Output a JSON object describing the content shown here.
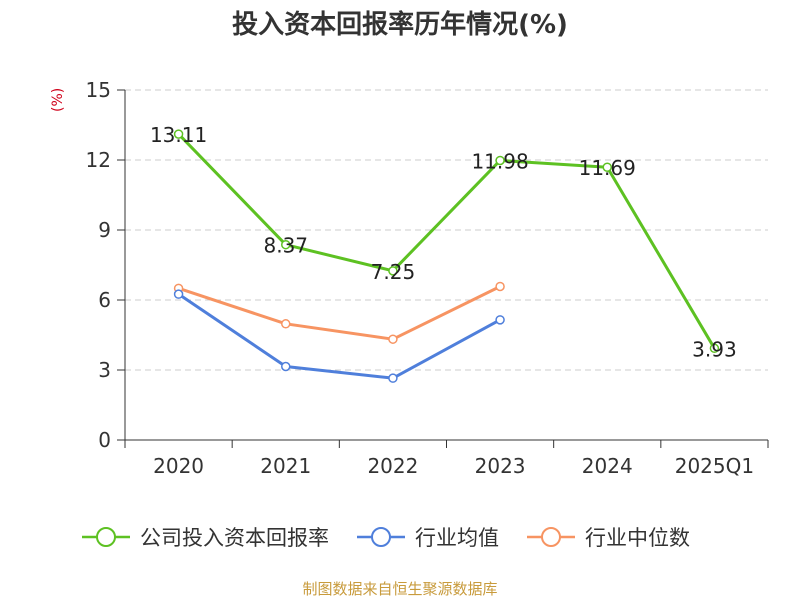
{
  "title": "投入资本回报率历年情况(%)",
  "unit": "(%)",
  "source": "制图数据来自恒生聚源数据库",
  "chart_data": {
    "type": "line",
    "title": "投入资本回报率历年情况(%)",
    "ylabel": "(%)",
    "categories": [
      "2020",
      "2021",
      "2022",
      "2023",
      "2024",
      "2025Q1"
    ],
    "yticks": [
      "0",
      "3",
      "6",
      "9",
      "12",
      "15"
    ],
    "ylim": [
      0,
      15
    ],
    "grid": true,
    "legend_position": "bottom",
    "series": [
      {
        "name": "公司投入资本回报率",
        "color": "#5dc122",
        "values": [
          13.11,
          8.37,
          7.25,
          11.98,
          11.69,
          3.93
        ],
        "labels": [
          "13.11",
          "8.37",
          "7.25",
          "11.98",
          "11.69",
          "3.93"
        ]
      },
      {
        "name": "行业均值",
        "color": "#4f7fdb",
        "values": [
          6.25,
          3.15,
          2.65,
          5.15,
          null,
          null
        ]
      },
      {
        "name": "行业中位数",
        "color": "#f79462",
        "values": [
          6.5,
          4.98,
          4.32,
          6.58,
          null,
          null
        ]
      }
    ]
  }
}
